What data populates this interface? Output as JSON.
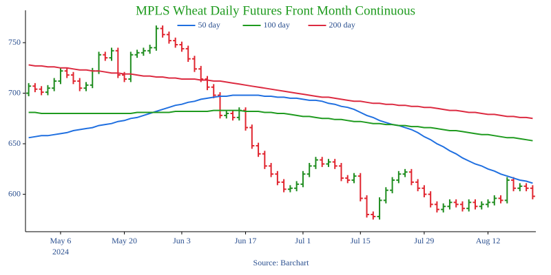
{
  "chart_data": {
    "type": "ohlc",
    "title": "MPLS Wheat Daily Futures Front Month Continuous",
    "source": "Source: Barchart",
    "categories": [
      null,
      null,
      null,
      null,
      null,
      "May 6",
      null,
      null,
      null,
      null,
      null,
      null,
      null,
      null,
      null,
      "May 20",
      null,
      null,
      null,
      null,
      null,
      null,
      null,
      null,
      "Jun 3",
      null,
      null,
      null,
      null,
      null,
      null,
      null,
      null,
      null,
      "Jun 17",
      null,
      null,
      null,
      null,
      null,
      null,
      null,
      null,
      "Jul 1",
      null,
      null,
      null,
      null,
      null,
      null,
      null,
      null,
      "Jul 15",
      null,
      null,
      null,
      null,
      null,
      null,
      null,
      null,
      null,
      "Jul 29",
      null,
      null,
      null,
      null,
      null,
      null,
      null,
      null,
      null,
      "Aug 12",
      null,
      null,
      null,
      null,
      null,
      null,
      null
    ],
    "x_sublabel": "2024",
    "open": [
      700,
      707,
      704,
      701,
      705,
      712,
      722,
      718,
      712,
      705,
      708,
      722,
      738,
      735,
      742,
      718,
      714,
      738,
      740,
      742,
      745,
      764,
      758,
      752,
      748,
      744,
      734,
      724,
      714,
      706,
      698,
      678,
      680,
      676,
      683,
      666,
      648,
      640,
      628,
      620,
      612,
      605,
      606,
      610,
      620,
      628,
      634,
      630,
      632,
      628,
      616,
      614,
      618,
      596,
      580,
      578,
      594,
      604,
      614,
      620,
      622,
      612,
      606,
      600,
      590,
      585,
      588,
      592,
      590,
      586,
      592,
      588,
      590,
      592,
      596,
      594,
      614,
      606,
      608,
      606
    ],
    "high": [
      710,
      710,
      707,
      708,
      715,
      725,
      725,
      721,
      715,
      711,
      725,
      741,
      741,
      745,
      745,
      721,
      741,
      743,
      745,
      748,
      767,
      767,
      761,
      755,
      751,
      747,
      737,
      727,
      717,
      709,
      701,
      683,
      683,
      686,
      686,
      669,
      651,
      643,
      631,
      623,
      615,
      609,
      613,
      623,
      631,
      637,
      637,
      635,
      635,
      631,
      619,
      621,
      621,
      599,
      583,
      597,
      607,
      617,
      623,
      625,
      625,
      615,
      609,
      603,
      593,
      591,
      595,
      595,
      593,
      595,
      595,
      593,
      595,
      599,
      599,
      617,
      617,
      611,
      611,
      609
    ],
    "low": [
      697,
      701,
      698,
      698,
      702,
      709,
      715,
      709,
      702,
      702,
      705,
      719,
      732,
      732,
      715,
      711,
      711,
      735,
      737,
      739,
      742,
      755,
      749,
      745,
      741,
      731,
      721,
      711,
      703,
      695,
      675,
      675,
      673,
      673,
      663,
      645,
      637,
      625,
      617,
      609,
      602,
      602,
      603,
      607,
      617,
      625,
      627,
      627,
      625,
      613,
      611,
      611,
      593,
      577,
      575,
      575,
      591,
      601,
      611,
      617,
      609,
      603,
      597,
      587,
      582,
      582,
      585,
      587,
      583,
      583,
      585,
      585,
      587,
      589,
      591,
      591,
      603,
      603,
      603,
      595
    ],
    "close": [
      707,
      704,
      701,
      705,
      712,
      722,
      718,
      712,
      705,
      708,
      722,
      738,
      735,
      742,
      718,
      714,
      738,
      740,
      742,
      745,
      764,
      758,
      752,
      748,
      744,
      734,
      724,
      714,
      706,
      698,
      678,
      680,
      676,
      683,
      666,
      648,
      640,
      628,
      620,
      612,
      605,
      606,
      610,
      620,
      628,
      634,
      630,
      632,
      628,
      616,
      614,
      618,
      596,
      580,
      578,
      594,
      604,
      614,
      620,
      622,
      612,
      606,
      600,
      590,
      585,
      588,
      592,
      590,
      586,
      592,
      588,
      590,
      592,
      596,
      594,
      614,
      606,
      608,
      606,
      598
    ],
    "up_color": "#1e8c1e",
    "down_color": "#e0242e",
    "series": [
      {
        "name": "50 day",
        "color": "#1f6fe0",
        "values": [
          656,
          657,
          658,
          658,
          659,
          660,
          661,
          663,
          664,
          665,
          666,
          668,
          669,
          670,
          672,
          673,
          675,
          676,
          678,
          680,
          682,
          684,
          686,
          688,
          689,
          691,
          692,
          694,
          695,
          696,
          697,
          697,
          698,
          698,
          698,
          698,
          698,
          697,
          697,
          696,
          696,
          695,
          695,
          694,
          693,
          693,
          692,
          690,
          689,
          687,
          686,
          684,
          681,
          678,
          676,
          673,
          671,
          669,
          668,
          666,
          664,
          661,
          657,
          654,
          650,
          647,
          643,
          640,
          636,
          633,
          630,
          628,
          625,
          623,
          620,
          618,
          616,
          614,
          613,
          611
        ]
      },
      {
        "name": "100 day",
        "color": "#1e9a1e",
        "values": [
          681,
          681,
          680,
          680,
          680,
          680,
          680,
          680,
          680,
          680,
          680,
          680,
          680,
          680,
          680,
          680,
          680,
          681,
          681,
          681,
          681,
          681,
          681,
          682,
          682,
          682,
          682,
          682,
          682,
          683,
          683,
          683,
          683,
          683,
          682,
          682,
          682,
          681,
          681,
          680,
          680,
          679,
          678,
          677,
          677,
          676,
          675,
          675,
          674,
          674,
          673,
          672,
          672,
          671,
          670,
          670,
          669,
          669,
          668,
          668,
          667,
          667,
          666,
          666,
          665,
          664,
          663,
          663,
          662,
          661,
          660,
          659,
          659,
          658,
          657,
          656,
          656,
          655,
          654,
          653
        ]
      },
      {
        "name": "200 day",
        "color": "#dc2a40",
        "values": [
          728,
          727,
          727,
          726,
          726,
          725,
          725,
          724,
          723,
          723,
          722,
          722,
          721,
          720,
          720,
          719,
          719,
          718,
          717,
          717,
          716,
          716,
          715,
          715,
          714,
          714,
          714,
          713,
          713,
          712,
          712,
          711,
          710,
          709,
          708,
          707,
          706,
          705,
          704,
          703,
          702,
          701,
          700,
          699,
          698,
          697,
          696,
          696,
          695,
          694,
          693,
          692,
          692,
          691,
          690,
          690,
          689,
          689,
          688,
          688,
          687,
          687,
          686,
          686,
          685,
          684,
          683,
          683,
          682,
          681,
          681,
          680,
          679,
          679,
          678,
          677,
          677,
          676,
          676,
          675
        ]
      }
    ],
    "ylim": [
      563,
      782
    ],
    "yticks": [
      600,
      650,
      700,
      750
    ],
    "grid": false
  }
}
